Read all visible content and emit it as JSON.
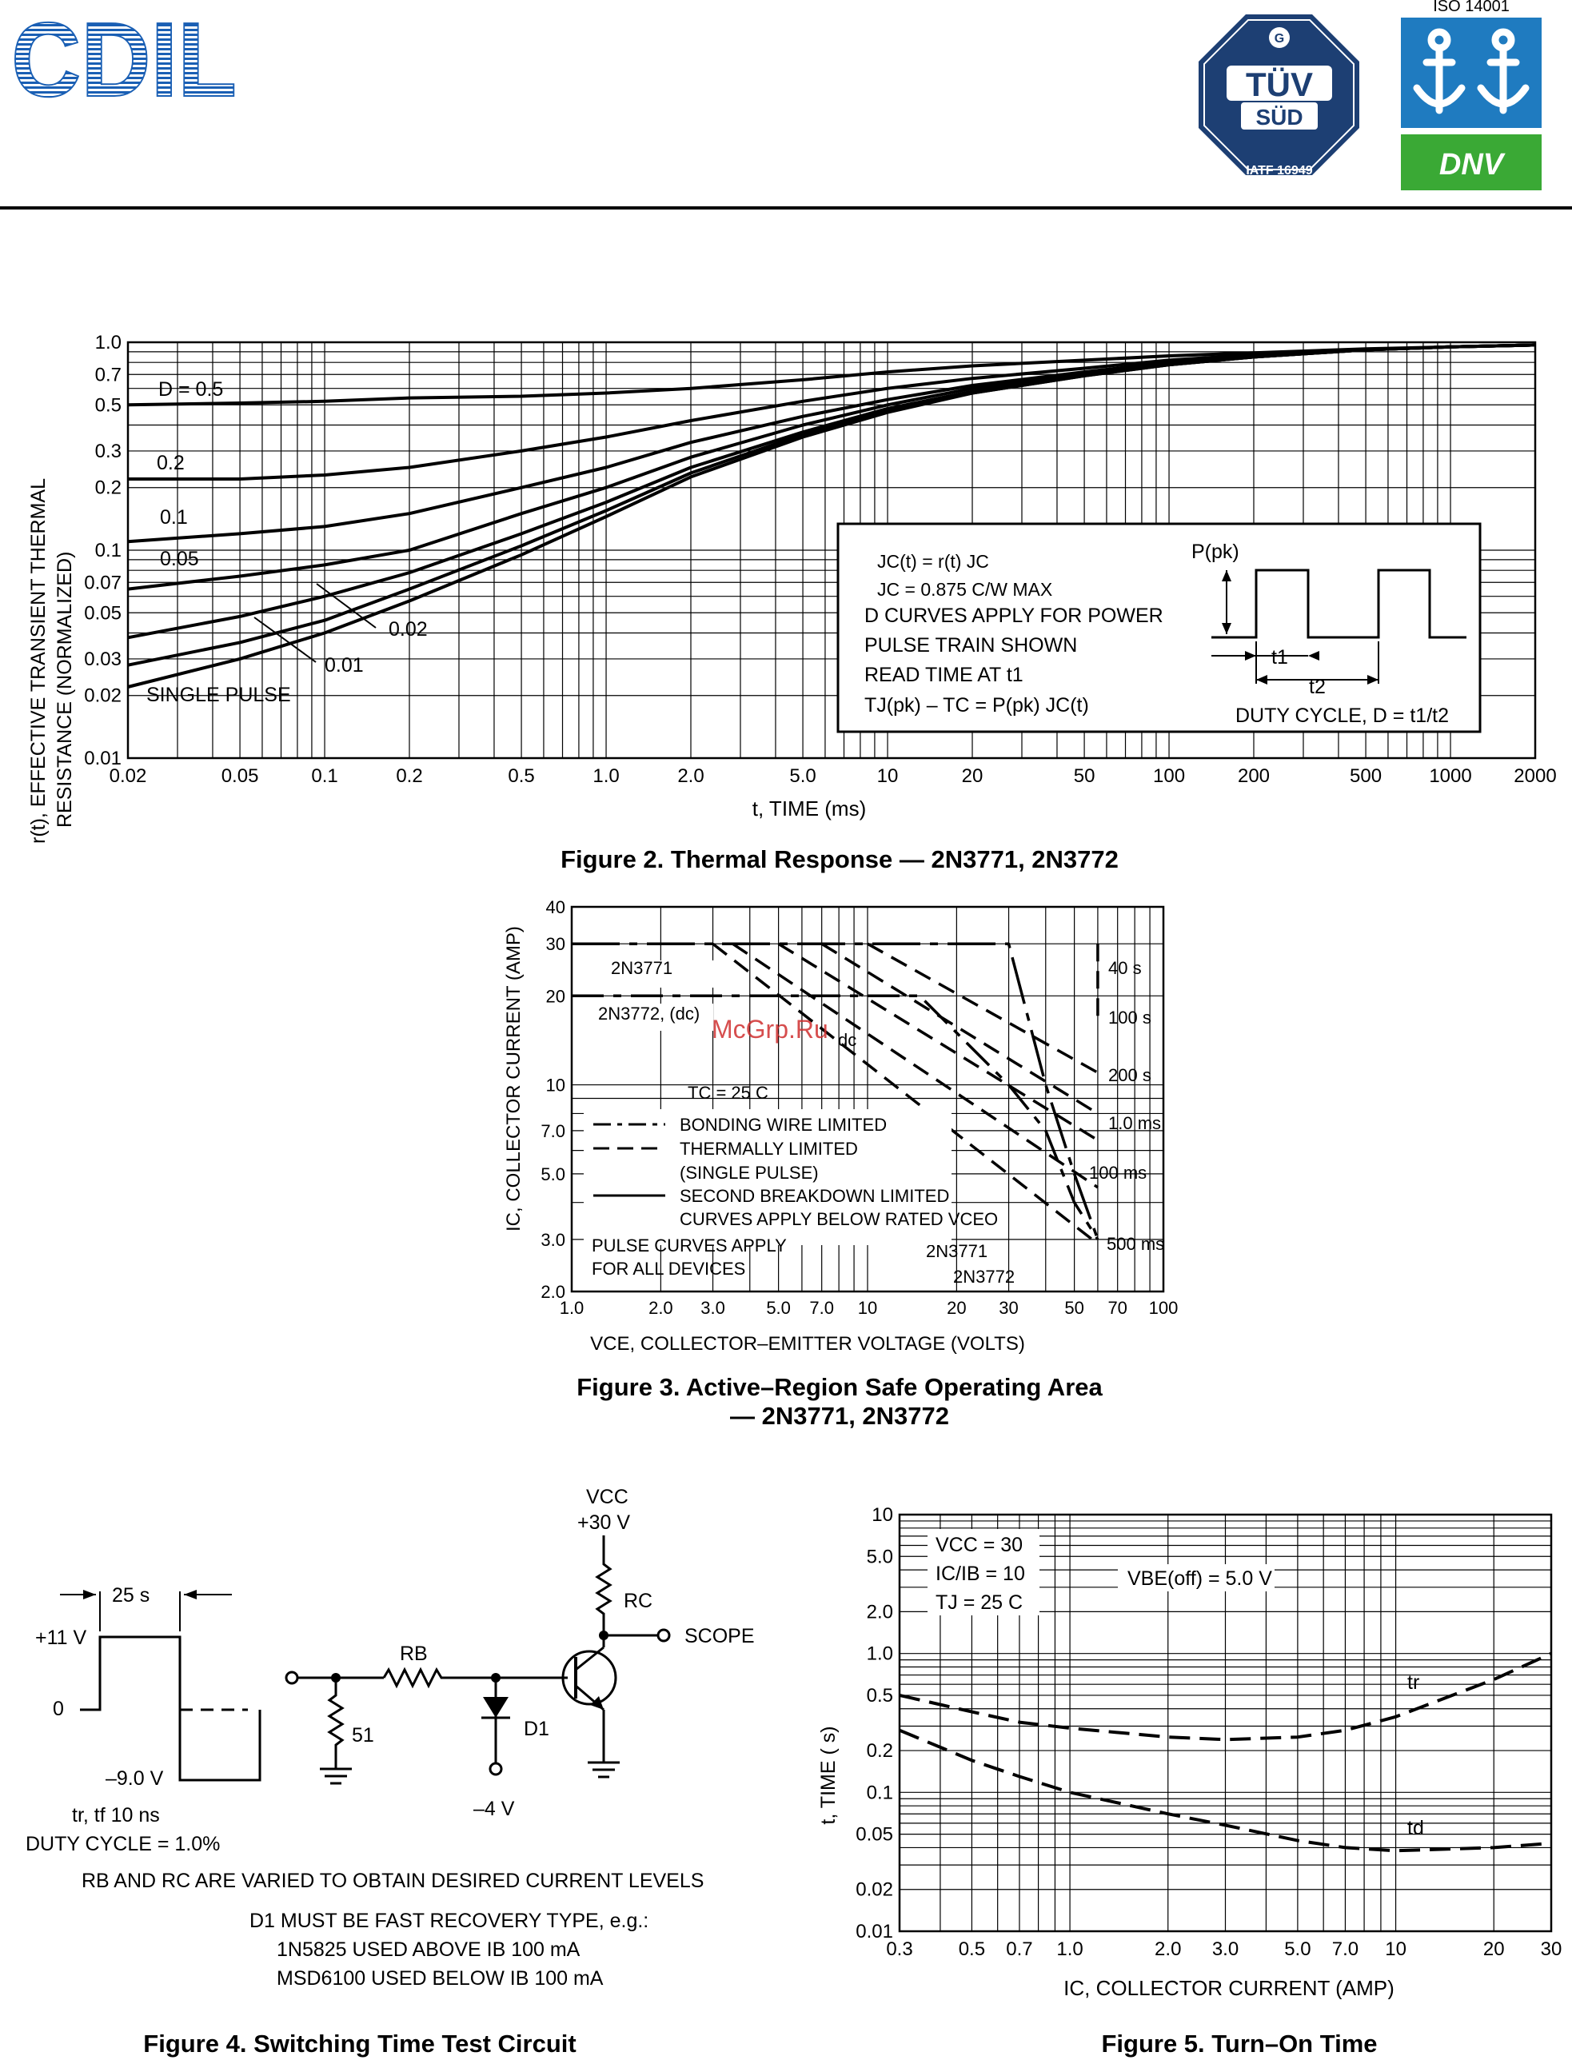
{
  "header": {
    "logo_text": "CDIL",
    "iso_label": "ISO 14001",
    "tuv_name": "TÜV",
    "tuv_sub": "SÜD",
    "tuv_cert": "IATF 16949",
    "dnv_label": "DNV",
    "colors": {
      "brand_blue": "#1a5fb4",
      "tuv_navy": "#1d3f73",
      "dnv_green": "#3aa935",
      "dnv_blue": "#1f7bc0"
    }
  },
  "figure2": {
    "caption": "Figure 2. Thermal Response — 2N3771, 2N3772",
    "ylabel_line1": "r(t), EFFECTIVE TRANSIENT THERMAL",
    "ylabel_line2": "RESISTANCE (NORMALIZED)",
    "xlabel": "t, TIME (ms)",
    "y_ticks": [
      "1.0",
      "0.7",
      "0.5",
      "0.3",
      "0.2",
      "0.1",
      "0.07",
      "0.05",
      "0.03",
      "0.02",
      "0.01"
    ],
    "x_ticks": [
      "0.02",
      "0.05",
      "0.1",
      "0.2",
      "0.5",
      "1.0",
      "2.0",
      "5.0",
      "10",
      "20",
      "50",
      "100",
      "200",
      "500",
      "1000",
      "2000"
    ],
    "curve_labels": [
      "D = 0.5",
      "0.2",
      "0.1",
      "0.05",
      "0.02",
      "0.01",
      "SINGLE PULSE"
    ],
    "box_lines": [
      "JC(t) = r(t)   JC",
      "JC = 0.875 C/W MAX",
      "D CURVES APPLY FOR POWER",
      "PULSE TRAIN SHOWN",
      "READ TIME AT t1",
      "TJ(pk) – TC = P(pk)   JC(t)"
    ],
    "box_ppk": "P(pk)",
    "box_t1": "t1",
    "box_t2": "t2",
    "box_duty": "DUTY CYCLE, D = t1/t2"
  },
  "figure3": {
    "caption_line1": "Figure 3. Active–Region Safe Operating Area",
    "caption_line2": "— 2N3771, 2N3772",
    "ylabel": "IC, COLLECTOR CURRENT (AMP)",
    "xlabel": "VCE, COLLECTOR–EMITTER VOLTAGE (VOLTS)",
    "y_ticks": [
      "40",
      "30",
      "20",
      "10",
      "7.0",
      "5.0",
      "3.0",
      "2.0"
    ],
    "x_ticks": [
      "1.0",
      "2.0",
      "3.0",
      "5.0",
      "7.0",
      "10",
      "20",
      "30",
      "50",
      "70",
      "100"
    ],
    "labels": [
      "2N3771",
      "2N3772, (dc)",
      "dc",
      "TC = 25 C",
      "40  s",
      "100  s",
      "200  s",
      "1.0 ms",
      "100 ms",
      "500 ms",
      "2N3771",
      "2N3772"
    ],
    "legend": [
      "BONDING WIRE LIMITED",
      "THERMALLY LIMITED",
      "(SINGLE PULSE)",
      "SECOND BREAKDOWN LIMITED",
      "CURVES APPLY BELOW RATED VCEO"
    ],
    "pulse_note": [
      "PULSE CURVES APPLY",
      "FOR ALL DEVICES"
    ],
    "watermark": "McGrp.Ru"
  },
  "figure4": {
    "caption": "Figure 4. Switching Time Test Circuit",
    "pulse_width": "25   s",
    "v_high": "+11 V",
    "v_zero": "0",
    "v_low": "–9.0 V",
    "rise_fall": "tr, tf   10 ns",
    "duty": "DUTY CYCLE = 1.0%",
    "r51": "51",
    "rb": "RB",
    "rc": "RC",
    "d1": "D1",
    "vcc": "VCC",
    "vcc_val": "+30 V",
    "scope": "SCOPE",
    "minus4": "–4 V",
    "note1": "RB AND RC ARE VARIED TO OBTAIN DESIRED CURRENT LEVELS",
    "note2": "D1 MUST BE FAST RECOVERY TYPE, e.g.:",
    "note3": "1N5825 USED ABOVE IB   100 mA",
    "note4": "MSD6100 USED BELOW IB   100 mA"
  },
  "figure5": {
    "caption": "Figure 5. Turn–On Time",
    "ylabel": "t, TIME (  s)",
    "xlabel": "IC, COLLECTOR CURRENT (AMP)",
    "y_ticks": [
      "10",
      "5.0",
      "2.0",
      "1.0",
      "0.5",
      "0.2",
      "0.1",
      "0.05",
      "0.02",
      "0.01"
    ],
    "x_ticks": [
      "0.3",
      "0.5",
      "0.7",
      "1.0",
      "2.0",
      "3.0",
      "5.0",
      "7.0",
      "10",
      "20",
      "30"
    ],
    "conditions": [
      "VCC = 30",
      "IC/IB = 10",
      "TJ = 25 C"
    ],
    "vbe": "VBE(off) = 5.0 V",
    "curve_tr": "tr",
    "curve_td": "td"
  },
  "chart_data": [
    {
      "type": "line",
      "title": "Figure 2. Thermal Response — 2N3771, 2N3772",
      "xlabel": "t, TIME (ms)",
      "ylabel": "r(t), EFFECTIVE TRANSIENT THERMAL RESISTANCE (NORMALIZED)",
      "xscale": "log",
      "yscale": "log",
      "xlim": [
        0.02,
        2000
      ],
      "ylim": [
        0.01,
        1.0
      ],
      "grid": true,
      "x": [
        0.02,
        0.05,
        0.1,
        0.2,
        0.5,
        1,
        2,
        5,
        10,
        20,
        50,
        100,
        200,
        500,
        1000,
        2000
      ],
      "series": [
        {
          "name": "D = 0.5",
          "values": [
            0.5,
            0.51,
            0.52,
            0.54,
            0.55,
            0.57,
            0.6,
            0.66,
            0.72,
            0.77,
            0.82,
            0.86,
            0.89,
            0.93,
            0.95,
            0.97
          ]
        },
        {
          "name": "0.2",
          "values": [
            0.22,
            0.22,
            0.23,
            0.25,
            0.3,
            0.35,
            0.42,
            0.52,
            0.6,
            0.67,
            0.75,
            0.82,
            0.87,
            0.92,
            0.95,
            0.97
          ]
        },
        {
          "name": "0.1",
          "values": [
            0.11,
            0.12,
            0.13,
            0.15,
            0.2,
            0.25,
            0.33,
            0.44,
            0.53,
            0.62,
            0.72,
            0.8,
            0.86,
            0.92,
            0.95,
            0.97
          ]
        },
        {
          "name": "0.05",
          "values": [
            0.065,
            0.075,
            0.085,
            0.1,
            0.15,
            0.2,
            0.28,
            0.4,
            0.5,
            0.6,
            0.71,
            0.79,
            0.85,
            0.92,
            0.95,
            0.97
          ]
        },
        {
          "name": "0.02",
          "values": [
            0.038,
            0.048,
            0.06,
            0.078,
            0.12,
            0.17,
            0.25,
            0.37,
            0.48,
            0.58,
            0.7,
            0.78,
            0.85,
            0.92,
            0.95,
            0.97
          ]
        },
        {
          "name": "0.01",
          "values": [
            0.028,
            0.036,
            0.046,
            0.065,
            0.105,
            0.155,
            0.235,
            0.36,
            0.47,
            0.57,
            0.69,
            0.78,
            0.85,
            0.92,
            0.95,
            0.97
          ]
        },
        {
          "name": "SINGLE PULSE",
          "values": [
            0.022,
            0.03,
            0.04,
            0.057,
            0.095,
            0.145,
            0.225,
            0.35,
            0.46,
            0.57,
            0.69,
            0.78,
            0.85,
            0.92,
            0.95,
            0.97
          ]
        }
      ]
    },
    {
      "type": "line",
      "title": "Figure 3. Active–Region Safe Operating Area — 2N3771, 2N3772",
      "xlabel": "VCE, COLLECTOR–EMITTER VOLTAGE (VOLTS)",
      "ylabel": "IC, COLLECTOR CURRENT (AMP)",
      "xscale": "log",
      "yscale": "log",
      "xlim": [
        1,
        100
      ],
      "ylim": [
        2,
        40
      ],
      "grid": true,
      "series": [
        {
          "name": "2N3771",
          "x": [
            1,
            30,
            40,
            50,
            60
          ],
          "values": [
            30,
            30,
            10,
            5,
            3
          ]
        },
        {
          "name": "2N3772, (dc)",
          "x": [
            1,
            15,
            30,
            40,
            50,
            60
          ],
          "values": [
            20,
            20,
            10,
            7,
            4,
            3
          ]
        },
        {
          "name": "40  s",
          "x": [
            60,
            60
          ],
          "values": [
            30,
            17
          ]
        },
        {
          "name": "100  s",
          "x": [
            10,
            60
          ],
          "values": [
            30,
            11
          ]
        },
        {
          "name": "200  s",
          "x": [
            7,
            60
          ],
          "values": [
            30,
            8
          ]
        },
        {
          "name": "1.0 ms",
          "x": [
            5,
            60
          ],
          "values": [
            30,
            6.5
          ]
        },
        {
          "name": "100 ms",
          "x": [
            3.5,
            60
          ],
          "values": [
            30,
            4.5
          ]
        },
        {
          "name": "500 ms",
          "x": [
            3,
            60
          ],
          "values": [
            30,
            2.9
          ]
        }
      ]
    },
    {
      "type": "line",
      "title": "Figure 5. Turn–On Time",
      "xlabel": "IC, COLLECTOR CURRENT (AMP)",
      "ylabel": "t, TIME (  s)",
      "xscale": "log",
      "yscale": "log",
      "xlim": [
        0.3,
        30
      ],
      "ylim": [
        0.01,
        10
      ],
      "grid": true,
      "x": [
        0.3,
        0.5,
        0.7,
        1.0,
        2.0,
        3.0,
        5.0,
        7.0,
        10,
        20,
        30
      ],
      "series": [
        {
          "name": "tr",
          "values": [
            0.5,
            0.38,
            0.32,
            0.29,
            0.25,
            0.24,
            0.25,
            0.28,
            0.35,
            0.65,
            1.0
          ]
        },
        {
          "name": "td",
          "values": [
            0.28,
            0.17,
            0.13,
            0.1,
            0.07,
            0.058,
            0.045,
            0.04,
            0.038,
            0.04,
            0.043
          ]
        }
      ]
    }
  ]
}
